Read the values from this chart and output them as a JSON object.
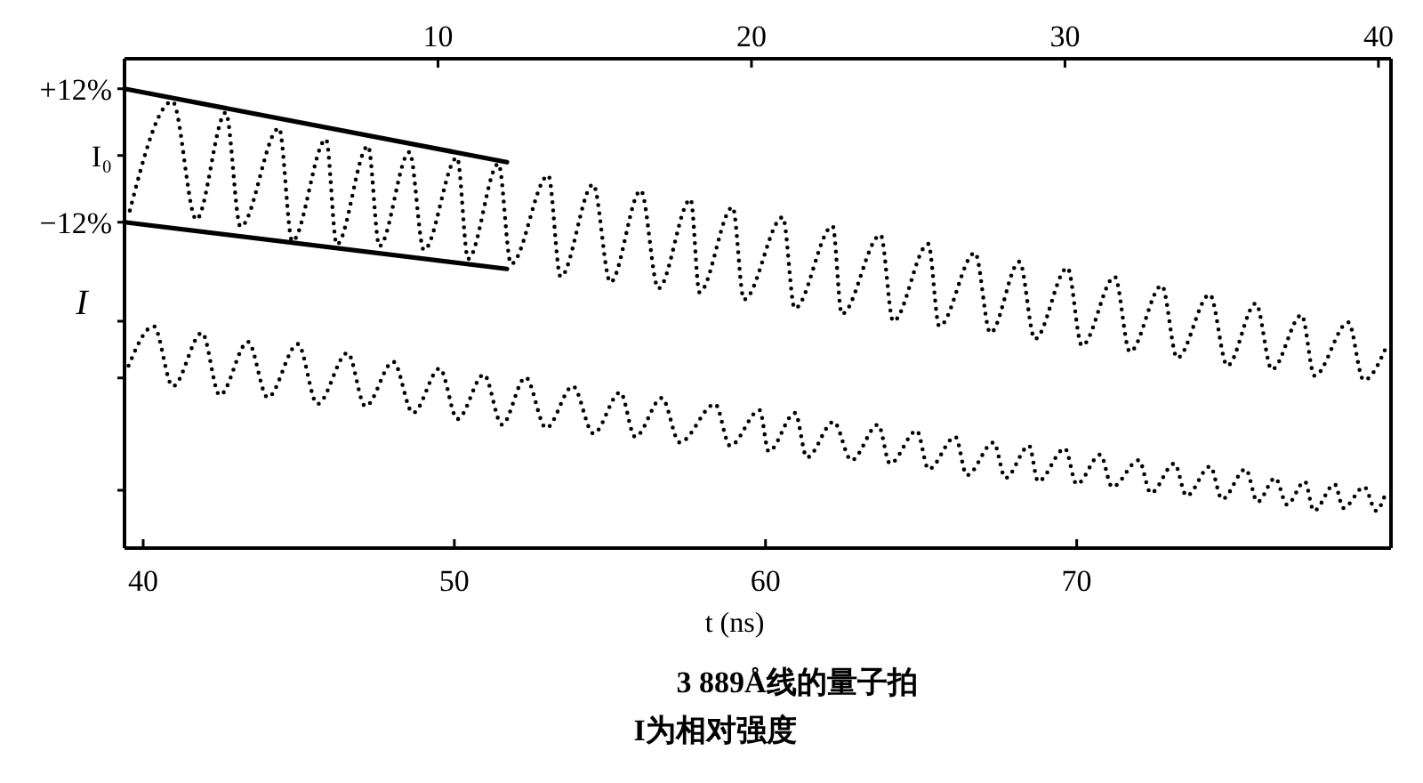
{
  "chart_data": {
    "type": "line",
    "title": "3 889Å线的量子拍",
    "xlabel": "t (ns)",
    "ylabel": "I",
    "annotations": [
      "I为相对强度"
    ],
    "xlim": [
      39.4,
      80.1
    ],
    "xticks": [
      40,
      50,
      60,
      70
    ],
    "x2lim": [
      0,
      40.4
    ],
    "x2ticks": [
      10,
      20,
      30,
      40
    ],
    "ylim": [
      -70.6,
      17.4
    ],
    "yticks": [
      {
        "value": 12,
        "label": "+12%"
      },
      {
        "value": 0,
        "label": "I₀"
      },
      {
        "value": -12,
        "label": "−12%"
      },
      {
        "value": -29.8,
        "label": null
      },
      {
        "value": -40,
        "label": null
      },
      {
        "value": -60.2,
        "label": null
      }
    ],
    "series": [
      {
        "axis": "x2",
        "color": "#000000",
        "line_style": "dotted",
        "x": [
          0.17,
          1.53,
          2.29,
          3.23,
          3.7,
          4.93,
          5.35,
          6.43,
          6.77,
          7.77,
          8.13,
          9.09,
          9.55,
          10.61,
          10.96,
          11.93,
          12.33,
          13.52,
          13.91,
          14.95,
          15.5,
          16.47,
          17.03,
          18.06,
          18.34,
          19.4,
          19.76,
          21.0,
          21.38,
          22.59,
          22.88,
          24.12,
          24.52,
          25.64,
          25.99,
          27.13,
          27.62,
          28.55,
          29.04,
          30.08,
          30.54,
          31.59,
          32.07,
          33.09,
          33.58,
          34.62,
          35.18,
          36.09,
          36.6,
          37.55,
          37.96,
          39.04,
          39.53,
          40.29
        ],
        "values": [
          -9.9,
          9.7,
          -11.5,
          7.7,
          -12.8,
          4.9,
          -15.4,
          2.9,
          -16.0,
          1.7,
          -16.3,
          0.6,
          -17.0,
          -0.4,
          -18.6,
          -1.5,
          -19.5,
          -3.6,
          -21.8,
          -5.2,
          -22.8,
          -6.3,
          -23.9,
          -7.9,
          -24.6,
          -9.3,
          -25.9,
          -11.1,
          -27.5,
          -12.7,
          -28.5,
          -14.3,
          -29.8,
          -15.9,
          -30.7,
          -17.5,
          -31.9,
          -19.1,
          -33.0,
          -20.2,
          -34.2,
          -21.8,
          -35.3,
          -23.4,
          -36.4,
          -25.0,
          -37.8,
          -26.6,
          -38.5,
          -28.7,
          -39.6,
          -30.0,
          -40.4,
          -33.9
        ]
      },
      {
        "color": "#000000",
        "line_style": "dotted",
        "x": [
          39.53,
          40.34,
          40.95,
          41.89,
          42.46,
          43.37,
          44.0,
          44.97,
          45.6,
          46.57,
          47.14,
          48.04,
          48.67,
          49.53,
          50.1,
          50.95,
          51.53,
          52.29,
          52.95,
          53.81,
          54.47,
          55.33,
          55.81,
          56.67,
          57.24,
          58.38,
          58.86,
          59.81,
          60.1,
          60.95,
          61.33,
          62.19,
          62.76,
          63.62,
          64.0,
          64.86,
          65.24,
          66.1,
          66.47,
          67.33,
          67.71,
          68.47,
          68.76,
          69.62,
          70.0,
          70.76,
          71.14,
          72.0,
          72.38,
          73.14,
          73.53,
          74.29,
          74.67,
          75.43,
          75.81,
          76.38,
          76.76,
          77.33,
          77.62,
          78.29,
          78.57,
          79.24,
          79.62,
          79.9
        ],
        "values": [
          -37.8,
          -30.7,
          -41.5,
          -31.9,
          -43.1,
          -33.5,
          -43.5,
          -33.9,
          -44.7,
          -35.5,
          -45.1,
          -37.1,
          -46.3,
          -38.3,
          -47.4,
          -39.4,
          -48.4,
          -39.9,
          -49.0,
          -41.5,
          -50.0,
          -42.6,
          -50.6,
          -43.6,
          -51.6,
          -44.7,
          -52.2,
          -45.8,
          -53.2,
          -46.3,
          -54.3,
          -47.9,
          -54.8,
          -48.4,
          -55.4,
          -49.5,
          -56.4,
          -50.6,
          -57.5,
          -51.6,
          -58.0,
          -52.2,
          -58.6,
          -52.7,
          -59.1,
          -53.8,
          -59.6,
          -54.8,
          -60.7,
          -55.4,
          -61.2,
          -55.9,
          -61.8,
          -56.4,
          -62.3,
          -58.0,
          -62.8,
          -58.6,
          -63.9,
          -59.1,
          -63.4,
          -59.6,
          -63.9,
          -61.2
        ]
      },
      {
        "axis": "x2",
        "color": "#000000",
        "line_style": "solid",
        "x": [
          0,
          12.2
        ],
        "values": [
          12,
          -1.2
        ]
      },
      {
        "axis": "x2",
        "color": "#000000",
        "line_style": "solid",
        "x": [
          0,
          12.2
        ],
        "values": [
          -12,
          -20.4
        ]
      }
    ]
  }
}
